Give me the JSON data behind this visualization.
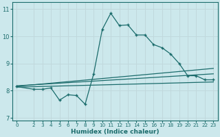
{
  "xlabel": "Humidex (Indice chaleur)",
  "background_color": "#cce8ec",
  "grid_color": "#c0d8dc",
  "line_color": "#1a6b6b",
  "xlim": [
    -0.5,
    23.5
  ],
  "ylim": [
    6.9,
    11.25
  ],
  "xticks": [
    0,
    2,
    3,
    4,
    5,
    6,
    7,
    8,
    9,
    10,
    11,
    12,
    13,
    14,
    15,
    16,
    17,
    18,
    19,
    20,
    21,
    22,
    23
  ],
  "yticks": [
    7,
    8,
    9,
    10,
    11
  ],
  "main_x": [
    0,
    2,
    3,
    4,
    5,
    6,
    7,
    8,
    9,
    10,
    11,
    12,
    13,
    14,
    15,
    16,
    17,
    18,
    19,
    20,
    21,
    22,
    23
  ],
  "main_y": [
    8.15,
    8.05,
    8.05,
    8.1,
    7.65,
    7.85,
    7.82,
    7.5,
    8.62,
    10.25,
    10.85,
    10.4,
    10.42,
    10.05,
    10.05,
    9.7,
    9.58,
    9.35,
    9.0,
    8.55,
    8.55,
    8.4,
    8.4
  ],
  "line1_x": [
    0,
    23
  ],
  "line1_y": [
    8.13,
    8.32
  ],
  "line2_x": [
    0,
    23
  ],
  "line2_y": [
    8.18,
    8.62
  ],
  "line3_x": [
    0,
    23
  ],
  "line3_y": [
    8.16,
    8.82
  ]
}
